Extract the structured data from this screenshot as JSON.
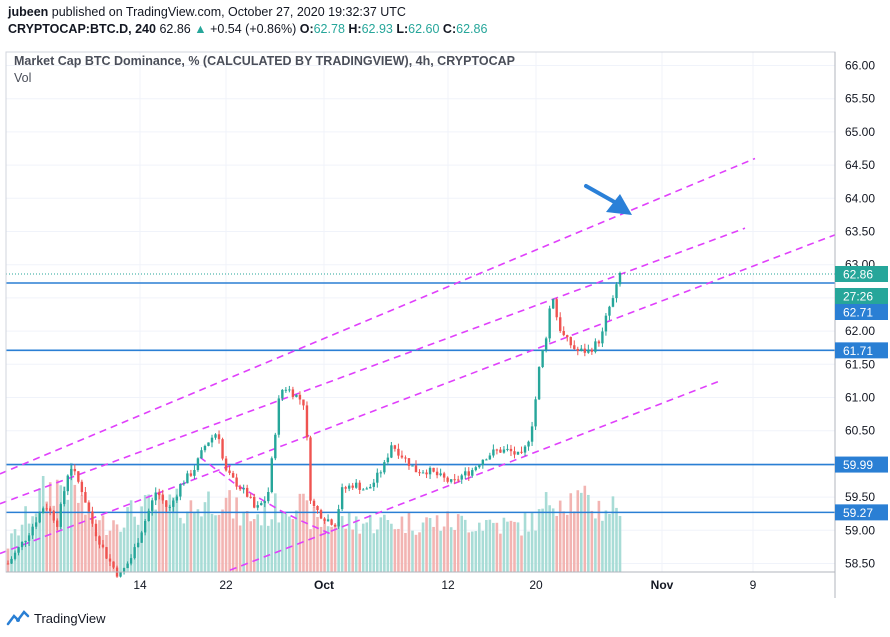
{
  "header": {
    "author": "jubeen",
    "published_text": "published on TradingView.com, October 27, 2020 19:32:37 UTC",
    "symbol": "CRYPTOCAP:BTC.D, 240",
    "last": "62.86",
    "change": "+0.54 (+0.86%)",
    "o_label": "O:",
    "o": "62.78",
    "h_label": "H:",
    "h": "62.93",
    "l_label": "L:",
    "l": "62.60",
    "c_label": "C:",
    "c": "62.86"
  },
  "legend": {
    "title": "Market Cap BTC Dominance, % (CALCULATED BY TRADINGVIEW), 4h, CRYPTOCAP",
    "vol": "Vol"
  },
  "footer": {
    "brand": "TradingView"
  },
  "colors": {
    "up": "#26a69a",
    "down": "#ef5350",
    "level": "#2a7fd4",
    "channel": "#e040fb",
    "arrow": "#2a80d8",
    "grid": "#f0f3fa",
    "vol_up": "#a8dcd6",
    "vol_down": "#f2b4b2"
  },
  "chart_data": {
    "type": "candlestick",
    "ylim": [
      58.5,
      66.0
    ],
    "yticks": [
      "66.00",
      "65.50",
      "65.00",
      "64.50",
      "64.00",
      "63.50",
      "63.00",
      "62.50",
      "62.00",
      "61.50",
      "61.00",
      "60.50",
      "60.00",
      "59.50",
      "59.00",
      "58.50"
    ],
    "xticks": [
      "14",
      "22",
      "Oct",
      "12",
      "20",
      "Nov",
      "9"
    ],
    "price_labels": [
      {
        "label": "62.86",
        "value": 62.86,
        "kind": "last"
      },
      {
        "label": "27:26",
        "value": 62.62,
        "kind": "countdown"
      },
      {
        "label": "62.71",
        "value": 62.36,
        "kind": "level"
      },
      {
        "label": "61.71",
        "value": 61.71,
        "kind": "level"
      },
      {
        "label": "59.99",
        "value": 59.99,
        "kind": "level"
      },
      {
        "label": "59.27",
        "value": 59.27,
        "kind": "level"
      }
    ],
    "horizontal_levels": [
      62.71,
      61.71,
      59.99,
      59.27
    ],
    "price_path": [
      [
        0,
        58.5
      ],
      [
        3,
        58.9
      ],
      [
        6,
        59.4
      ],
      [
        8,
        59.1
      ],
      [
        10,
        60.0
      ],
      [
        12,
        59.6
      ],
      [
        14,
        59.0
      ],
      [
        16,
        58.6
      ],
      [
        18,
        58.3
      ],
      [
        20,
        58.6
      ],
      [
        22,
        59.1
      ],
      [
        24,
        59.6
      ],
      [
        26,
        59.3
      ],
      [
        28,
        59.7
      ],
      [
        30,
        59.9
      ],
      [
        32,
        60.3
      ],
      [
        34,
        60.5
      ],
      [
        35,
        59.9
      ],
      [
        37,
        59.7
      ],
      [
        39,
        59.5
      ],
      [
        40,
        59.3
      ],
      [
        42,
        59.5
      ],
      [
        44,
        61.1
      ],
      [
        45,
        61.15
      ],
      [
        47,
        61.0
      ],
      [
        48,
        60.9
      ],
      [
        49,
        59.4
      ],
      [
        51,
        59.2
      ],
      [
        53,
        59.1
      ],
      [
        54,
        59.6
      ],
      [
        56,
        59.7
      ],
      [
        58,
        59.6
      ],
      [
        59,
        59.7
      ],
      [
        61,
        60.0
      ],
      [
        62,
        60.3
      ],
      [
        64,
        60.1
      ],
      [
        66,
        59.9
      ],
      [
        68,
        59.9
      ],
      [
        70,
        59.8
      ],
      [
        72,
        59.7
      ],
      [
        73,
        59.8
      ],
      [
        75,
        59.9
      ],
      [
        77,
        60.1
      ],
      [
        79,
        60.2
      ],
      [
        81,
        60.2
      ],
      [
        83,
        60.1
      ],
      [
        84,
        60.3
      ],
      [
        85,
        60.7
      ],
      [
        86,
        61.5
      ],
      [
        87,
        61.9
      ],
      [
        88,
        62.6
      ],
      [
        89,
        62.1
      ],
      [
        90,
        61.9
      ],
      [
        92,
        61.7
      ],
      [
        94,
        61.7
      ],
      [
        96,
        61.9
      ],
      [
        97,
        62.3
      ],
      [
        98,
        62.5
      ],
      [
        99,
        62.86
      ]
    ],
    "volume_profile": [
      [
        0,
        0.3
      ],
      [
        6,
        0.9
      ],
      [
        10,
        1.0
      ],
      [
        14,
        0.5
      ],
      [
        18,
        0.6
      ],
      [
        22,
        0.7
      ],
      [
        26,
        0.75
      ],
      [
        30,
        0.7
      ],
      [
        34,
        0.85
      ],
      [
        38,
        0.6
      ],
      [
        42,
        0.65
      ],
      [
        46,
        0.8
      ],
      [
        50,
        0.55
      ],
      [
        54,
        0.55
      ],
      [
        58,
        0.55
      ],
      [
        62,
        0.55
      ],
      [
        66,
        0.55
      ],
      [
        70,
        0.55
      ],
      [
        74,
        0.55
      ],
      [
        78,
        0.55
      ],
      [
        82,
        0.5
      ],
      [
        86,
        0.6
      ],
      [
        88,
        0.85
      ],
      [
        92,
        0.8
      ],
      [
        96,
        0.7
      ],
      [
        99,
        0.75
      ]
    ],
    "channel_lines_price_space": [
      {
        "x1": 0,
        "y1": 59.85,
        "x2": 755,
        "y2": 64.6
      },
      {
        "x1": 0,
        "y1": 59.4,
        "x2": 745,
        "y2": 63.55
      },
      {
        "x1": 0,
        "y1": 58.65,
        "x2": 835,
        "y2": 63.45
      },
      {
        "x1": 230,
        "y1": 58.4,
        "x2": 720,
        "y2": 61.25
      }
    ],
    "channel_zigzag_price_space": [
      [
        200,
        60.1
      ],
      [
        235,
        59.7
      ],
      [
        280,
        59.3
      ],
      [
        300,
        59.15
      ],
      [
        330,
        58.95
      ]
    ]
  }
}
